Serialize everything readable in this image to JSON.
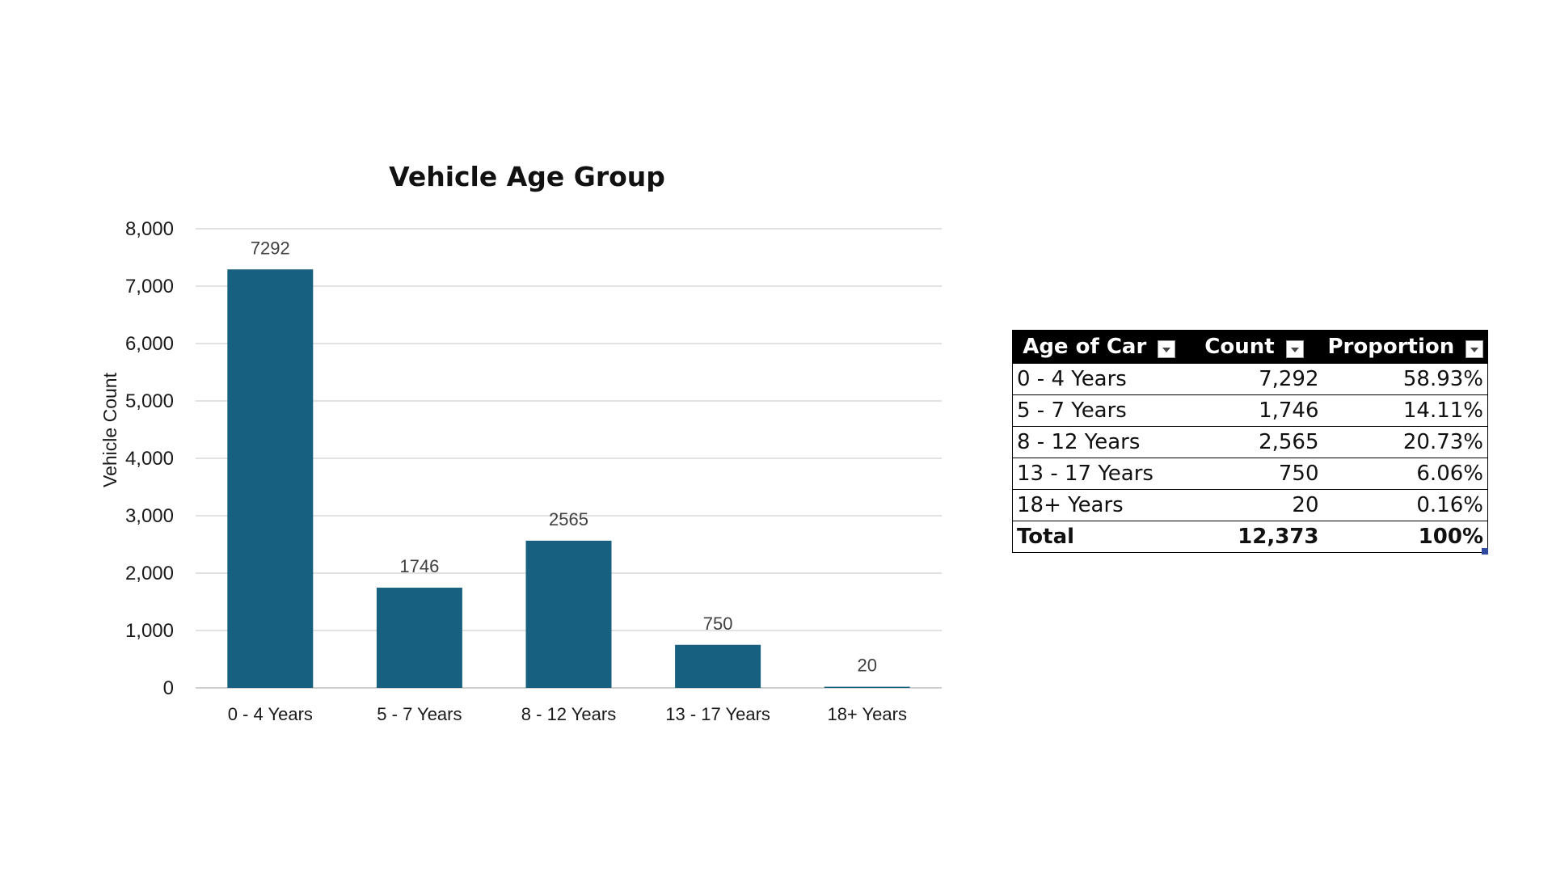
{
  "chart_data": {
    "type": "bar",
    "title": "Vehicle Age Group",
    "xlabel": "",
    "ylabel": "Vehicle Count",
    "categories": [
      "0 - 4 Years",
      "5 - 7 Years",
      "8 - 12 Years",
      "13 - 17 Years",
      "18+ Years"
    ],
    "values": [
      7292,
      1746,
      2565,
      750,
      20
    ],
    "data_labels": [
      "7292",
      "1746",
      "2565",
      "750",
      "20"
    ],
    "ylim": [
      0,
      8000
    ],
    "yticks": [
      0,
      1000,
      2000,
      3000,
      4000,
      5000,
      6000,
      7000,
      8000
    ],
    "ytick_labels": [
      "0",
      "1,000",
      "2,000",
      "3,000",
      "4,000",
      "5,000",
      "6,000",
      "7,000",
      "8,000"
    ],
    "grid": true,
    "legend": "none",
    "bar_color": "#17607f"
  },
  "table": {
    "headers": [
      "Age of Car",
      "Count",
      "Proportion"
    ],
    "rows": [
      [
        "0 - 4 Years",
        "7,292",
        "58.93%"
      ],
      [
        "5 - 7 Years",
        "1,746",
        "14.11%"
      ],
      [
        "8 - 12 Years",
        "2,565",
        "20.73%"
      ],
      [
        "13 - 17 Years",
        "750",
        "6.06%"
      ],
      [
        "18+ Years",
        "20",
        "0.16%"
      ]
    ],
    "total": [
      "Total",
      "12,373",
      "100%"
    ],
    "header_bg": "#000000",
    "filter_icon": "dropdown-filter-icon"
  }
}
